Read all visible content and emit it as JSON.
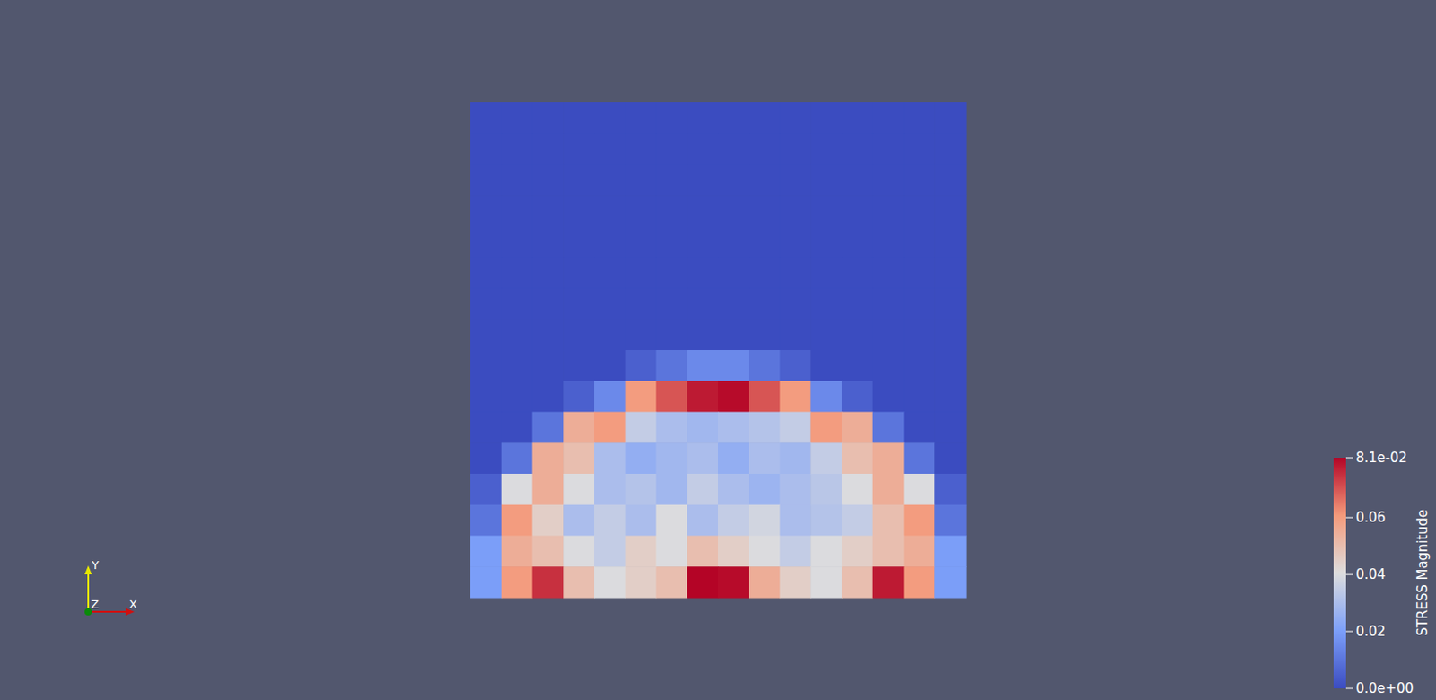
{
  "chart_data": {
    "type": "heatmap",
    "tick_labels": false,
    "colorbar_title": "STRESS Magnitude",
    "color_range": [
      0,
      0.081
    ],
    "color_ticks": [
      {
        "value": 0,
        "label": "0.0e+00"
      },
      0.02,
      0.04,
      0.06,
      {
        "value": 0.081,
        "label": "8.1e-02"
      }
    ],
    "triad_labels": [
      "X",
      "Y",
      "Z"
    ],
    "cells": [
      [
        0,
        0,
        0,
        0,
        0,
        0,
        0,
        0,
        0,
        0,
        0,
        0,
        0,
        0,
        0,
        0
      ],
      [
        0,
        0,
        0,
        0,
        0,
        0,
        0,
        0,
        0,
        0,
        0,
        0,
        0,
        0,
        0,
        0
      ],
      [
        0,
        0,
        0,
        0,
        0,
        0,
        0,
        0,
        0,
        0,
        0,
        0,
        0,
        0,
        0,
        0
      ],
      [
        0,
        0,
        0,
        0,
        0,
        0,
        0,
        0,
        0,
        0,
        0,
        0,
        0,
        0,
        0,
        0
      ],
      [
        0,
        0,
        0,
        0,
        0,
        0,
        0,
        0,
        0,
        0,
        0,
        0,
        0,
        0,
        0,
        0
      ],
      [
        0,
        0,
        0,
        0,
        0,
        0,
        0,
        0,
        0,
        0,
        0,
        0,
        0,
        0,
        0,
        0
      ],
      [
        0,
        0,
        0,
        0,
        0,
        0,
        0,
        0,
        0,
        0,
        0,
        0,
        0,
        0,
        0,
        0
      ],
      [
        0,
        0,
        0,
        0,
        0,
        0,
        0,
        0,
        0,
        0,
        0,
        0,
        0,
        0,
        0,
        0
      ],
      [
        0,
        0,
        0,
        0,
        0,
        0.005,
        0.01,
        0.015,
        0.015,
        0.01,
        0.005,
        0,
        0,
        0,
        0,
        0
      ],
      [
        0,
        0,
        0,
        0.005,
        0.015,
        0.06,
        0.07,
        0.078,
        0.08,
        0.07,
        0.06,
        0.015,
        0.005,
        0,
        0,
        0
      ],
      [
        0,
        0,
        0.01,
        0.055,
        0.06,
        0.035,
        0.03,
        0.028,
        0.03,
        0.032,
        0.035,
        0.06,
        0.055,
        0.01,
        0,
        0
      ],
      [
        0,
        0.01,
        0.055,
        0.05,
        0.03,
        0.025,
        0.028,
        0.03,
        0.025,
        0.03,
        0.028,
        0.035,
        0.05,
        0.055,
        0.01,
        0
      ],
      [
        0.005,
        0.04,
        0.055,
        0.04,
        0.03,
        0.032,
        0.028,
        0.035,
        0.03,
        0.027,
        0.03,
        0.033,
        0.04,
        0.055,
        0.04,
        0.005
      ],
      [
        0.01,
        0.06,
        0.045,
        0.03,
        0.035,
        0.03,
        0.04,
        0.03,
        0.035,
        0.038,
        0.03,
        0.032,
        0.035,
        0.05,
        0.06,
        0.01
      ],
      [
        0.02,
        0.055,
        0.05,
        0.04,
        0.035,
        0.045,
        0.04,
        0.05,
        0.045,
        0.04,
        0.035,
        0.04,
        0.045,
        0.05,
        0.055,
        0.02
      ],
      [
        0.02,
        0.06,
        0.075,
        0.05,
        0.04,
        0.045,
        0.05,
        0.081,
        0.08,
        0.055,
        0.045,
        0.04,
        0.05,
        0.078,
        0.06,
        0.02
      ]
    ]
  }
}
